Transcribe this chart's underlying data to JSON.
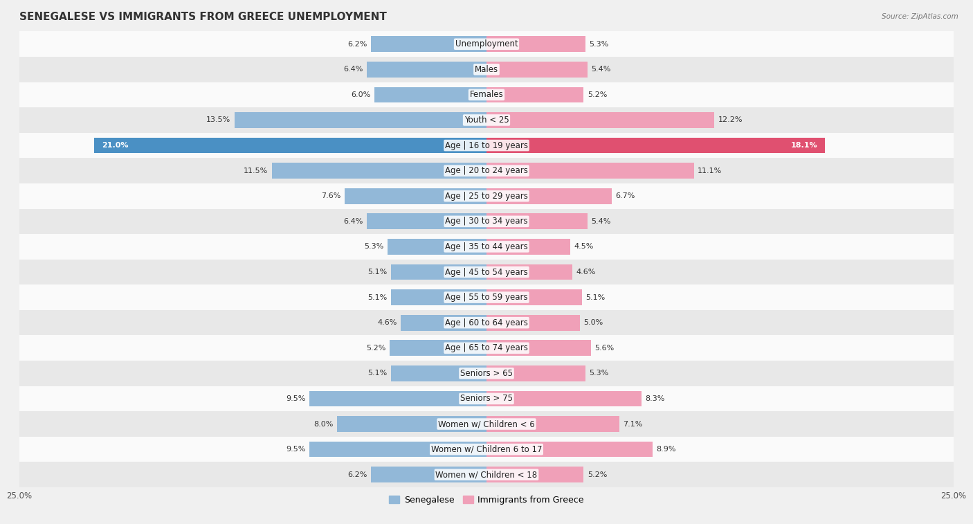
{
  "title": "SENEGALESE VS IMMIGRANTS FROM GREECE UNEMPLOYMENT",
  "source": "Source: ZipAtlas.com",
  "categories": [
    "Unemployment",
    "Males",
    "Females",
    "Youth < 25",
    "Age | 16 to 19 years",
    "Age | 20 to 24 years",
    "Age | 25 to 29 years",
    "Age | 30 to 34 years",
    "Age | 35 to 44 years",
    "Age | 45 to 54 years",
    "Age | 55 to 59 years",
    "Age | 60 to 64 years",
    "Age | 65 to 74 years",
    "Seniors > 65",
    "Seniors > 75",
    "Women w/ Children < 6",
    "Women w/ Children 6 to 17",
    "Women w/ Children < 18"
  ],
  "senegalese": [
    6.2,
    6.4,
    6.0,
    13.5,
    21.0,
    11.5,
    7.6,
    6.4,
    5.3,
    5.1,
    5.1,
    4.6,
    5.2,
    5.1,
    9.5,
    8.0,
    9.5,
    6.2
  ],
  "greece": [
    5.3,
    5.4,
    5.2,
    12.2,
    18.1,
    11.1,
    6.7,
    5.4,
    4.5,
    4.6,
    5.1,
    5.0,
    5.6,
    5.3,
    8.3,
    7.1,
    8.9,
    5.2
  ],
  "senegalese_color": "#92b8d8",
  "greece_color": "#f0a0b8",
  "senegalese_highlight_color": "#4a90c4",
  "greece_highlight_color": "#e05070",
  "highlight_rows": [
    4
  ],
  "xlim": 25.0,
  "bg_color": "#f0f0f0",
  "row_bg_white": "#fafafa",
  "row_bg_gray": "#e8e8e8",
  "legend_senegalese": "Senegalese",
  "legend_greece": "Immigrants from Greece",
  "title_fontsize": 11,
  "label_fontsize": 8.5,
  "value_fontsize": 8
}
